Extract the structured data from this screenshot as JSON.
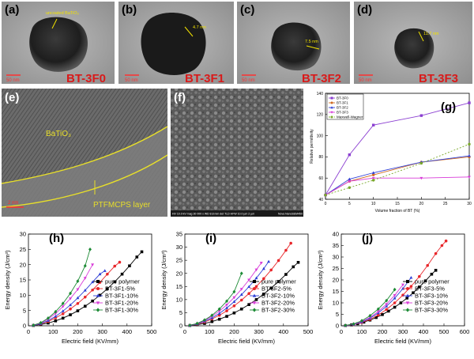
{
  "panels": {
    "a": {
      "letter": "(a)",
      "sample": "BT-3F0",
      "annotation": "uncoated BaTiO₃",
      "scale_bar": "50 nm"
    },
    "b": {
      "letter": "(b)",
      "sample": "BT-3F1",
      "annotation": "4.7 nm",
      "scale_bar": "50 nm"
    },
    "c": {
      "letter": "(c)",
      "sample": "BT-3F2",
      "annotation": "7.5 nm",
      "scale_bar": "50 nm"
    },
    "d": {
      "letter": "(d)",
      "sample": "BT-3F3",
      "annotation": "11.7 nm",
      "scale_bar": "50 nm"
    },
    "e": {
      "letter": "(e)",
      "core_label": "BaTiO₃",
      "shell_label": "PTFMCPS layer",
      "scale_bar": "2 nm"
    },
    "f": {
      "letter": "(f)",
      "footer": "HV 10.0 kV   mag 30 000 x   WD 8.8 mm   det TLD   HFW 10.0 µm   2 µm",
      "footer_right": "Nova NanoSEM450"
    },
    "g": {
      "letter": "(g)"
    },
    "h": {
      "letter": "(h)"
    },
    "i": {
      "letter": "(i)"
    },
    "j": {
      "letter": "(j)"
    }
  },
  "colors": {
    "black_series": "#000000",
    "red_series": "#e8262a",
    "blue_series": "#2f3fd6",
    "magenta_series": "#d83bd8",
    "green_series": "#1c8a34",
    "olive_series": "#7aa82a",
    "sample_label": "#d91a1a",
    "annotation": "#f2e200"
  },
  "chart_data": [
    {
      "id": "g",
      "type": "line",
      "xlabel": "Volume fraction of BT (%)",
      "ylabel": "Relative permittivity",
      "xlim": [
        0,
        30
      ],
      "ylim": [
        40,
        140
      ],
      "xticks": [
        0,
        5,
        10,
        15,
        20,
        25,
        30
      ],
      "yticks": [
        40,
        60,
        80,
        100,
        120,
        140
      ],
      "legend_position": "top-left",
      "series": [
        {
          "name": "BT-3F0",
          "color": "#8b3fd1",
          "marker": "square",
          "x": [
            0,
            5,
            10,
            20,
            30
          ],
          "y": [
            44,
            82,
            110,
            119,
            131
          ]
        },
        {
          "name": "BT-3F1",
          "color": "#d06a20",
          "marker": "circle",
          "x": [
            0,
            5,
            10,
            20,
            30
          ],
          "y": [
            44,
            57,
            63,
            75,
            80
          ]
        },
        {
          "name": "BT-3F2",
          "color": "#2f3fd6",
          "marker": "triangle",
          "x": [
            0,
            5,
            10,
            20,
            30
          ],
          "y": [
            44,
            59,
            65,
            75,
            81
          ]
        },
        {
          "name": "BT-3F3",
          "color": "#d83bd8",
          "marker": "triangle-down",
          "x": [
            0,
            5,
            10,
            20,
            30
          ],
          "y": [
            44,
            57,
            60,
            60,
            61
          ]
        },
        {
          "name": "Maxwell-Wagner",
          "color": "#7aa82a",
          "marker": "circle",
          "dashed": true,
          "x": [
            0,
            5,
            10,
            20,
            30
          ],
          "y": [
            44,
            51,
            58,
            74,
            92
          ]
        }
      ]
    },
    {
      "id": "h",
      "type": "line",
      "xlabel": "Electric field (KV/mm)",
      "ylabel": "Energy density (J/cm³)",
      "xlim": [
        0,
        500
      ],
      "ylim": [
        0,
        30
      ],
      "xticks": [
        0,
        100,
        200,
        300,
        400,
        500
      ],
      "yticks": [
        0,
        5,
        10,
        15,
        20,
        25,
        30
      ],
      "legend_position": "bottom-right",
      "series": [
        {
          "name": "pure polymer",
          "color": "#000000",
          "marker": "square",
          "x": [
            20,
            50,
            80,
            110,
            140,
            170,
            200,
            230,
            260,
            290,
            320,
            350,
            380,
            410,
            440,
            460
          ],
          "y": [
            0.1,
            0.4,
            0.9,
            1.6,
            2.5,
            3.6,
            4.9,
            6.4,
            8.1,
            10,
            12.1,
            14.4,
            16.9,
            19.6,
            22.5,
            24.2
          ]
        },
        {
          "name": "BT-3F1-5%",
          "color": "#e8262a",
          "marker": "circle",
          "x": [
            20,
            50,
            80,
            110,
            140,
            170,
            200,
            230,
            260,
            290,
            320,
            350,
            370
          ],
          "y": [
            0.1,
            0.6,
            1.4,
            2.6,
            3.9,
            5.5,
            7.3,
            9.4,
            11.7,
            14.2,
            16.9,
            19.5,
            20.8
          ]
        },
        {
          "name": "BT-3F1-10%",
          "color": "#2f3fd6",
          "marker": "triangle",
          "x": [
            20,
            50,
            80,
            110,
            140,
            170,
            200,
            230,
            260,
            290,
            310
          ],
          "y": [
            0.1,
            0.7,
            1.7,
            3.1,
            4.8,
            6.8,
            9.1,
            11.6,
            14.3,
            16.9,
            18
          ]
        },
        {
          "name": "BT-3F1-20%",
          "color": "#d83bd8",
          "marker": "triangle-down",
          "x": [
            20,
            50,
            80,
            110,
            140,
            170,
            200,
            230,
            260
          ],
          "y": [
            0.2,
            0.9,
            2.2,
            4,
            6.3,
            8.9,
            11.9,
            15.6,
            20
          ]
        },
        {
          "name": "BT-3F1-30%",
          "color": "#1c8a34",
          "marker": "diamond",
          "x": [
            20,
            50,
            80,
            110,
            140,
            170,
            200,
            230,
            250
          ],
          "y": [
            0.2,
            1,
            2.5,
            4.6,
            7.3,
            10.6,
            14.6,
            19.6,
            25
          ]
        }
      ]
    },
    {
      "id": "i",
      "type": "line",
      "xlabel": "Electric field (KV/mm)",
      "ylabel": "Energy density (J/cm³)",
      "xlim": [
        0,
        500
      ],
      "ylim": [
        0,
        35
      ],
      "xticks": [
        0,
        100,
        200,
        300,
        400,
        500
      ],
      "yticks": [
        0,
        5,
        10,
        15,
        20,
        25,
        30,
        35
      ],
      "legend_position": "bottom-right",
      "series": [
        {
          "name": "pure polymer",
          "color": "#000000",
          "marker": "square",
          "x": [
            20,
            50,
            80,
            110,
            140,
            170,
            200,
            230,
            260,
            290,
            320,
            350,
            380,
            410,
            440,
            460
          ],
          "y": [
            0.1,
            0.4,
            0.9,
            1.6,
            2.5,
            3.6,
            4.9,
            6.4,
            8.1,
            10,
            12.1,
            14.4,
            16.9,
            19.6,
            22.5,
            24.2
          ]
        },
        {
          "name": "BT-3F2-5%",
          "color": "#e8262a",
          "marker": "circle",
          "x": [
            20,
            50,
            80,
            110,
            140,
            170,
            200,
            230,
            260,
            290,
            320,
            350,
            380,
            410,
            430
          ],
          "y": [
            0.1,
            0.6,
            1.4,
            2.6,
            4,
            5.7,
            7.6,
            9.8,
            12.3,
            15,
            18,
            21.3,
            24.9,
            28.8,
            31.5
          ]
        },
        {
          "name": "BT-3F2-10%",
          "color": "#2f3fd6",
          "marker": "triangle",
          "x": [
            20,
            50,
            80,
            110,
            140,
            170,
            200,
            230,
            260,
            290,
            320,
            340
          ],
          "y": [
            0.1,
            0.7,
            1.7,
            3,
            4.7,
            6.8,
            9.2,
            11.9,
            14.9,
            18.2,
            21.8,
            24.5
          ]
        },
        {
          "name": "BT-3F2-20%",
          "color": "#d83bd8",
          "marker": "triangle-down",
          "x": [
            20,
            50,
            80,
            110,
            140,
            170,
            200,
            230,
            260,
            290,
            310
          ],
          "y": [
            0.2,
            0.8,
            2,
            3.6,
            5.6,
            8,
            10.8,
            14,
            17.5,
            21.4,
            24
          ]
        },
        {
          "name": "BT-3F2-30%",
          "color": "#1c8a34",
          "marker": "diamond",
          "x": [
            20,
            50,
            80,
            110,
            140,
            170,
            200,
            230
          ],
          "y": [
            0.2,
            0.9,
            2.2,
            4,
            6.4,
            9.4,
            13,
            20
          ]
        }
      ]
    },
    {
      "id": "j",
      "type": "line",
      "xlabel": "Electric field (KV/mm)",
      "ylabel": "Energy density (J/cm³)",
      "xlim": [
        0,
        600
      ],
      "ylim": [
        0,
        40
      ],
      "xticks": [
        0,
        100,
        200,
        300,
        400,
        500,
        600
      ],
      "yticks": [
        0,
        5,
        10,
        15,
        20,
        25,
        30,
        35,
        40
      ],
      "legend_position": "bottom-right",
      "series": [
        {
          "name": "pure polymer",
          "color": "#000000",
          "marker": "square",
          "x": [
            20,
            50,
            80,
            110,
            140,
            170,
            200,
            230,
            260,
            290,
            320,
            350,
            380,
            410,
            440,
            460
          ],
          "y": [
            0.1,
            0.4,
            0.9,
            1.6,
            2.5,
            3.6,
            4.9,
            6.4,
            8.1,
            10,
            12.1,
            14.4,
            16.9,
            19.6,
            22.5,
            24.2
          ]
        },
        {
          "name": "BT-3F3-5%",
          "color": "#e8262a",
          "marker": "circle",
          "x": [
            20,
            60,
            100,
            140,
            180,
            220,
            260,
            300,
            340,
            380,
            420,
            460,
            490,
            510
          ],
          "y": [
            0.1,
            0.5,
            1.4,
            2.8,
            4.7,
            7.1,
            10,
            13.4,
            17.2,
            21.5,
            26.3,
            31.5,
            35,
            37
          ]
        },
        {
          "name": "BT-3F3-10%",
          "color": "#2f3fd6",
          "marker": "triangle",
          "x": [
            20,
            60,
            100,
            140,
            180,
            220,
            260,
            300,
            340
          ],
          "y": [
            0.1,
            0.6,
            1.6,
            3.3,
            5.6,
            8.5,
            12,
            16.2,
            21
          ]
        },
        {
          "name": "BT-3F3-20%",
          "color": "#d83bd8",
          "marker": "triangle-down",
          "x": [
            20,
            60,
            100,
            140,
            180,
            220,
            260,
            300
          ],
          "y": [
            0.1,
            0.7,
            1.9,
            3.7,
            6.2,
            9.4,
            13.3,
            17.9
          ]
        },
        {
          "name": "BT-3F3-30%",
          "color": "#1c8a34",
          "marker": "diamond",
          "x": [
            20,
            60,
            100,
            140,
            180,
            220,
            260
          ],
          "y": [
            0.2,
            0.8,
            2.2,
            4.4,
            7.3,
            11,
            15.8
          ]
        }
      ]
    }
  ]
}
